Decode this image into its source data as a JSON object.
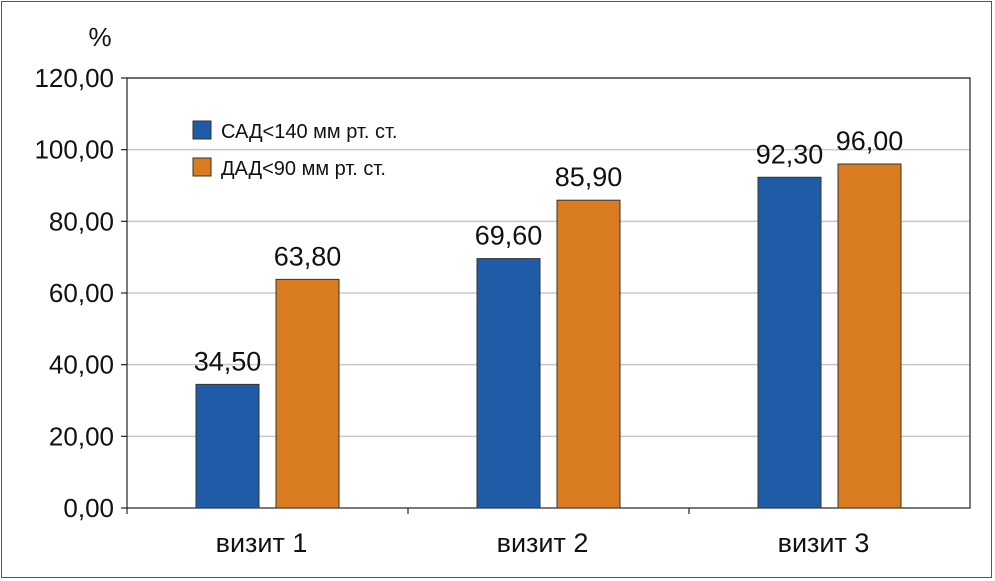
{
  "chart_data": {
    "type": "bar",
    "title": "",
    "ylabel": "%",
    "xlabel": "",
    "categories": [
      "визит 1",
      "визит 2",
      "визит 3"
    ],
    "series": [
      {
        "name": "САД<140 мм рт. ст.",
        "color": "#1f5ca8",
        "values": [
          34.5,
          69.6,
          92.3
        ],
        "labels": [
          "34,50",
          "69,60",
          "92,30"
        ]
      },
      {
        "name": "ДАД<90 мм рт. ст.",
        "color": "#d87c1f",
        "values": [
          63.8,
          85.9,
          96.0
        ],
        "labels": [
          "63,80",
          "85,90",
          "96,00"
        ]
      }
    ],
    "ylim": [
      0,
      120
    ],
    "yticks": [
      0,
      20,
      40,
      60,
      80,
      100,
      120
    ],
    "ytick_labels": [
      "0,00",
      "20,00",
      "40,00",
      "60,00",
      "80,00",
      "100,00",
      "120,00"
    ],
    "grid": true,
    "legend_position": "top-left"
  }
}
